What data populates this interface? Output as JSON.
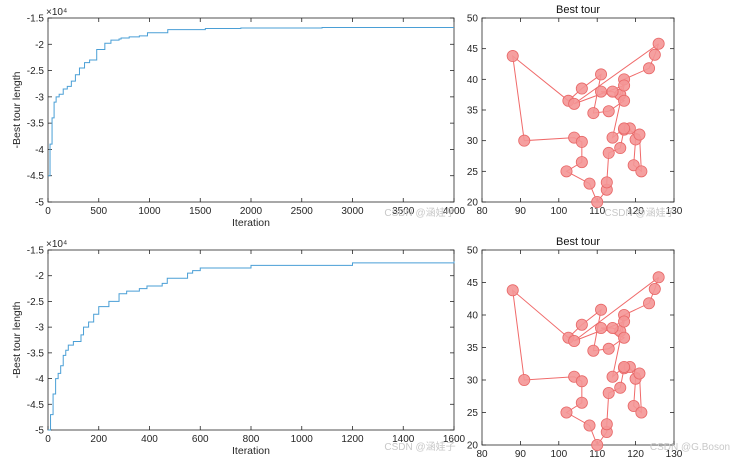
{
  "colors": {
    "convergence_line": "#4a9fd6",
    "tour_line": "#f06a6a",
    "city_fill": "#f49696",
    "city_edge": "#e86868",
    "axis": "#262626"
  },
  "watermarks": {
    "top_left": "CSDN @涵娃子",
    "top_right": "CSDN @涵娃子",
    "bottom_left": "CSDN @涵娃子",
    "bottom_right": "CSDN @G.Boson"
  },
  "chart_data": [
    {
      "type": "line",
      "id": "convergence-top",
      "title": "",
      "xlabel": "Iteration",
      "ylabel": "-Best tour length",
      "xlim": [
        0,
        4000
      ],
      "ylim": [
        -5,
        -1.5
      ],
      "y_exponent": "×10⁴",
      "xticks": [
        0,
        500,
        1000,
        1500,
        2000,
        2500,
        3000,
        3500,
        4000
      ],
      "yticks": [
        -5,
        -4.5,
        -4,
        -3.5,
        -3,
        -2.5,
        -2,
        -1.5
      ],
      "steps": [
        [
          0,
          -4.5
        ],
        [
          20,
          -3.9
        ],
        [
          40,
          -3.4
        ],
        [
          60,
          -3.1
        ],
        [
          80,
          -3.0
        ],
        [
          110,
          -2.95
        ],
        [
          150,
          -2.85
        ],
        [
          190,
          -2.8
        ],
        [
          230,
          -2.7
        ],
        [
          270,
          -2.58
        ],
        [
          310,
          -2.45
        ],
        [
          360,
          -2.35
        ],
        [
          410,
          -2.3
        ],
        [
          480,
          -2.1
        ],
        [
          560,
          -1.98
        ],
        [
          620,
          -1.92
        ],
        [
          700,
          -1.9
        ],
        [
          720,
          -1.88
        ],
        [
          800,
          -1.86
        ],
        [
          900,
          -1.84
        ],
        [
          980,
          -1.78
        ],
        [
          1180,
          -1.72
        ],
        [
          1550,
          -1.7
        ],
        [
          1900,
          -1.69
        ],
        [
          2300,
          -1.69
        ],
        [
          2700,
          -1.68
        ],
        [
          3100,
          -1.68
        ],
        [
          4000,
          -1.68
        ]
      ]
    },
    {
      "type": "scatter",
      "id": "tour-top",
      "title": "Best tour",
      "xlim": [
        80,
        130
      ],
      "ylim": [
        20,
        50
      ],
      "xticks": [
        80,
        90,
        100,
        110,
        120,
        130
      ],
      "yticks": [
        20,
        25,
        30,
        35,
        40,
        45,
        50
      ],
      "tour": [
        [
          126,
          45.8
        ],
        [
          125,
          44
        ],
        [
          123.5,
          41.8
        ],
        [
          117,
          40
        ],
        [
          116,
          37.5
        ],
        [
          114,
          38
        ],
        [
          111,
          38
        ],
        [
          117,
          36.5
        ],
        [
          113,
          34.8
        ],
        [
          109,
          34.5
        ],
        [
          111,
          40.8
        ],
        [
          106,
          38.5
        ],
        [
          102.5,
          36.5
        ],
        [
          88,
          43.8
        ],
        [
          91,
          30
        ],
        [
          104,
          30.5
        ],
        [
          106,
          29.8
        ],
        [
          106,
          26.5
        ],
        [
          102,
          25
        ],
        [
          108,
          23
        ],
        [
          110,
          20
        ],
        [
          112.5,
          22
        ],
        [
          112.5,
          23.2
        ],
        [
          113,
          28
        ],
        [
          116,
          28.8
        ],
        [
          117,
          31.8
        ],
        [
          118.5,
          32
        ],
        [
          120,
          30.2
        ],
        [
          119.5,
          26
        ],
        [
          121.5,
          25
        ],
        [
          121,
          31
        ],
        [
          117,
          32
        ],
        [
          114,
          30.5
        ],
        [
          117,
          39
        ],
        [
          104,
          36
        ],
        [
          126,
          45.8
        ]
      ]
    },
    {
      "type": "line",
      "id": "convergence-bottom",
      "title": "",
      "xlabel": "Iteration",
      "ylabel": "-Best tour length",
      "xlim": [
        0,
        1600
      ],
      "ylim": [
        -5,
        -1.5
      ],
      "y_exponent": "×10⁴",
      "xticks": [
        0,
        200,
        400,
        600,
        800,
        1000,
        1200,
        1400,
        1600
      ],
      "yticks": [
        -5,
        -4.5,
        -4,
        -3.5,
        -3,
        -2.5,
        -2,
        -1.5
      ],
      "steps": [
        [
          0,
          -5.0
        ],
        [
          10,
          -4.7
        ],
        [
          20,
          -4.3
        ],
        [
          30,
          -4.0
        ],
        [
          40,
          -3.9
        ],
        [
          50,
          -3.75
        ],
        [
          60,
          -3.55
        ],
        [
          70,
          -3.45
        ],
        [
          80,
          -3.35
        ],
        [
          100,
          -3.28
        ],
        [
          130,
          -3.15
        ],
        [
          140,
          -3.0
        ],
        [
          160,
          -2.9
        ],
        [
          180,
          -2.75
        ],
        [
          200,
          -2.6
        ],
        [
          240,
          -2.5
        ],
        [
          280,
          -2.35
        ],
        [
          310,
          -2.3
        ],
        [
          360,
          -2.25
        ],
        [
          390,
          -2.2
        ],
        [
          450,
          -2.15
        ],
        [
          470,
          -2.05
        ],
        [
          510,
          -2.05
        ],
        [
          550,
          -1.95
        ],
        [
          570,
          -1.9
        ],
        [
          600,
          -1.85
        ],
        [
          800,
          -1.8
        ],
        [
          1200,
          -1.75
        ],
        [
          1600,
          -1.72
        ]
      ]
    },
    {
      "type": "scatter",
      "id": "tour-bottom",
      "title": "Best tour",
      "xlim": [
        80,
        130
      ],
      "ylim": [
        20,
        50
      ],
      "xticks": [
        80,
        90,
        100,
        110,
        120,
        130
      ],
      "yticks": [
        20,
        25,
        30,
        35,
        40,
        45,
        50
      ],
      "tour": [
        [
          126,
          45.8
        ],
        [
          125,
          44
        ],
        [
          123.5,
          41.8
        ],
        [
          117,
          40
        ],
        [
          116,
          37.5
        ],
        [
          114,
          38
        ],
        [
          111,
          38
        ],
        [
          117,
          36.5
        ],
        [
          113,
          34.8
        ],
        [
          109,
          34.5
        ],
        [
          111,
          40.8
        ],
        [
          106,
          38.5
        ],
        [
          102.5,
          36.5
        ],
        [
          88,
          43.8
        ],
        [
          91,
          30
        ],
        [
          104,
          30.5
        ],
        [
          106,
          29.8
        ],
        [
          106,
          26.5
        ],
        [
          102,
          25
        ],
        [
          108,
          23
        ],
        [
          110,
          20
        ],
        [
          112.5,
          22
        ],
        [
          112.5,
          23.2
        ],
        [
          113,
          28
        ],
        [
          116,
          28.8
        ],
        [
          117,
          31.8
        ],
        [
          118.5,
          32
        ],
        [
          120,
          30.2
        ],
        [
          119.5,
          26
        ],
        [
          121.5,
          25
        ],
        [
          121,
          31
        ],
        [
          117,
          32
        ],
        [
          114,
          30.5
        ],
        [
          117,
          39
        ],
        [
          104,
          36
        ],
        [
          126,
          45.8
        ]
      ]
    }
  ]
}
